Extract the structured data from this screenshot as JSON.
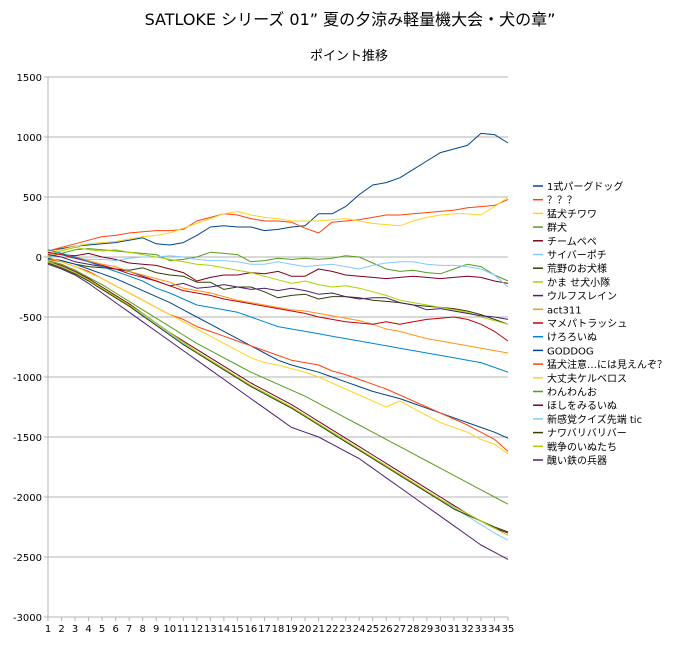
{
  "chart_data": {
    "type": "line",
    "title": "SATLOKE シリーズ 01” 夏の夕涼み軽量機大会・犬の章”",
    "subtitle": "ポイント推移",
    "xlabel": "",
    "ylabel": "",
    "x": [
      1,
      2,
      3,
      4,
      5,
      6,
      7,
      8,
      9,
      10,
      11,
      12,
      13,
      14,
      15,
      16,
      17,
      18,
      19,
      20,
      21,
      22,
      23,
      24,
      25,
      26,
      27,
      28,
      29,
      30,
      31,
      32,
      33,
      34,
      35
    ],
    "ylim": [
      -3000,
      1500
    ],
    "yticks": [
      1500,
      1000,
      500,
      0,
      -500,
      -1000,
      -1500,
      -2000,
      -2500,
      -3000
    ],
    "grid": true,
    "legend_position": "right",
    "series": [
      {
        "name": "1式パーグドッグ",
        "color": "#004586",
        "values": [
          50,
          70,
          90,
          100,
          110,
          120,
          140,
          160,
          110,
          100,
          120,
          180,
          250,
          260,
          250,
          250,
          220,
          230,
          250,
          260,
          360,
          360,
          420,
          520,
          600,
          620,
          660,
          730,
          800,
          870,
          900,
          930,
          1030,
          1020,
          950
        ]
      },
      {
        "name": "？？？",
        "color": "#ff420e",
        "values": [
          50,
          80,
          110,
          140,
          170,
          180,
          200,
          210,
          220,
          220,
          230,
          300,
          330,
          360,
          350,
          320,
          300,
          300,
          290,
          240,
          200,
          290,
          300,
          310,
          330,
          350,
          350,
          360,
          370,
          380,
          390,
          410,
          420,
          430,
          480
        ]
      },
      {
        "name": "猛犬チワワ",
        "color": "#ffd320",
        "values": [
          50,
          60,
          90,
          110,
          120,
          130,
          150,
          170,
          180,
          200,
          240,
          280,
          320,
          360,
          380,
          350,
          330,
          320,
          300,
          300,
          300,
          310,
          320,
          300,
          280,
          270,
          260,
          300,
          330,
          350,
          360,
          360,
          350,
          420,
          500
        ]
      },
      {
        "name": "群犬",
        "color": "#579d1c",
        "values": [
          0,
          30,
          60,
          70,
          60,
          50,
          40,
          30,
          20,
          -30,
          -20,
          0,
          40,
          30,
          20,
          -40,
          -30,
          -10,
          -20,
          -10,
          -20,
          -10,
          10,
          0,
          -50,
          -100,
          -120,
          -110,
          -130,
          -140,
          -100,
          -60,
          -80,
          -150,
          -200
        ]
      },
      {
        "name": "チームペペ",
        "color": "#7e0021",
        "values": [
          30,
          20,
          10,
          30,
          0,
          -20,
          -50,
          -60,
          -70,
          -100,
          -130,
          -200,
          -170,
          -150,
          -150,
          -130,
          -140,
          -120,
          -160,
          -160,
          -100,
          -120,
          -150,
          -160,
          -170,
          -180,
          -170,
          -160,
          -170,
          -180,
          -170,
          -160,
          -170,
          -200,
          -220
        ]
      },
      {
        "name": "サイバーポチ",
        "color": "#83caff",
        "values": [
          10,
          0,
          -10,
          -20,
          -20,
          -30,
          -10,
          0,
          0,
          10,
          0,
          -20,
          -30,
          -30,
          -40,
          -60,
          -60,
          -40,
          -60,
          -80,
          -70,
          -60,
          -80,
          -100,
          -70,
          -50,
          -40,
          -40,
          -60,
          -70,
          -70,
          -80,
          -100,
          -150,
          -250
        ]
      },
      {
        "name": "荒野のお犬様",
        "color": "#314004",
        "values": [
          -10,
          -30,
          -60,
          -80,
          -90,
          -100,
          -110,
          -90,
          -130,
          -150,
          -160,
          -210,
          -210,
          -270,
          -250,
          -250,
          -290,
          -340,
          -320,
          -310,
          -350,
          -330,
          -330,
          -340,
          -360,
          -370,
          -380,
          -400,
          -410,
          -420,
          -430,
          -450,
          -480,
          -520,
          -560
        ]
      },
      {
        "name": "かま せ犬小隊",
        "color": "#aecf00",
        "values": [
          20,
          50,
          80,
          60,
          50,
          60,
          40,
          20,
          0,
          -20,
          -40,
          -60,
          -70,
          -90,
          -110,
          -130,
          -160,
          -190,
          -220,
          -200,
          -230,
          -250,
          -240,
          -260,
          -290,
          -320,
          -360,
          -380,
          -400,
          -420,
          -440,
          -460,
          -500,
          -530,
          -560
        ]
      },
      {
        "name": "ウルフスレイン",
        "color": "#4b1f6f",
        "values": [
          20,
          0,
          -40,
          -60,
          -80,
          -100,
          -120,
          -160,
          -200,
          -240,
          -220,
          -260,
          -250,
          -230,
          -250,
          -270,
          -260,
          -280,
          -260,
          -280,
          -310,
          -300,
          -330,
          -350,
          -340,
          -340,
          -380,
          -400,
          -440,
          -430,
          -450,
          -470,
          -490,
          -500,
          -520
        ]
      },
      {
        "name": "act311",
        "color": "#ff950e",
        "values": [
          30,
          20,
          0,
          -30,
          -60,
          -80,
          -120,
          -150,
          -180,
          -210,
          -260,
          -280,
          -300,
          -330,
          -360,
          -380,
          -400,
          -420,
          -440,
          -450,
          -470,
          -490,
          -510,
          -530,
          -560,
          -600,
          -620,
          -650,
          -680,
          -700,
          -720,
          -740,
          -760,
          -780,
          -800
        ]
      },
      {
        "name": "マメパトラッシュ",
        "color": "#c5000b",
        "values": [
          40,
          20,
          -10,
          -40,
          -70,
          -100,
          -140,
          -170,
          -200,
          -240,
          -280,
          -300,
          -320,
          -350,
          -370,
          -390,
          -410,
          -430,
          -450,
          -470,
          -500,
          -520,
          -540,
          -550,
          -560,
          -540,
          -560,
          -540,
          -520,
          -510,
          -500,
          -520,
          -560,
          -620,
          -700
        ]
      },
      {
        "name": "けろろいぬ",
        "color": "#0084d1",
        "values": [
          60,
          30,
          0,
          -40,
          -80,
          -120,
          -160,
          -200,
          -260,
          -300,
          -350,
          -400,
          -420,
          -440,
          -460,
          -500,
          -540,
          -580,
          -600,
          -620,
          -640,
          -660,
          -680,
          -700,
          -720,
          -740,
          -760,
          -780,
          -800,
          -820,
          -840,
          -860,
          -880,
          -920,
          -960
        ]
      },
      {
        "name": "GODDOG",
        "color": "#004586",
        "values": [
          -10,
          -30,
          -60,
          -100,
          -140,
          -180,
          -230,
          -280,
          -330,
          -380,
          -440,
          -500,
          -560,
          -620,
          -680,
          -740,
          -800,
          -860,
          -900,
          -930,
          -960,
          -1000,
          -1040,
          -1080,
          -1120,
          -1150,
          -1180,
          -1220,
          -1260,
          -1300,
          -1340,
          -1380,
          -1420,
          -1460,
          -1510
        ]
      },
      {
        "name": "猛犬注意…には見えんぞ？",
        "color": "#ff420e",
        "values": [
          -20,
          -40,
          -80,
          -120,
          -180,
          -240,
          -300,
          -360,
          -420,
          -480,
          -520,
          -580,
          -620,
          -660,
          -700,
          -740,
          -780,
          -820,
          -860,
          -880,
          -900,
          -950,
          -980,
          -1020,
          -1060,
          -1100,
          -1150,
          -1200,
          -1250,
          -1300,
          -1350,
          -1400,
          -1460,
          -1520,
          -1620
        ]
      },
      {
        "name": "大丈夫ケルベロス",
        "color": "#ffd320",
        "values": [
          0,
          -40,
          -80,
          -130,
          -180,
          -240,
          -300,
          -360,
          -420,
          -480,
          -540,
          -600,
          -660,
          -720,
          -780,
          -840,
          -880,
          -900,
          -930,
          -960,
          -1000,
          -1050,
          -1100,
          -1150,
          -1200,
          -1250,
          -1200,
          -1260,
          -1320,
          -1380,
          -1420,
          -1460,
          -1520,
          -1560,
          -1640
        ]
      },
      {
        "name": "わんわんお",
        "color": "#579d1c",
        "values": [
          -30,
          -60,
          -110,
          -170,
          -230,
          -300,
          -370,
          -440,
          -510,
          -580,
          -650,
          -720,
          -780,
          -840,
          -900,
          -960,
          -1010,
          -1060,
          -1110,
          -1160,
          -1220,
          -1280,
          -1340,
          -1400,
          -1460,
          -1520,
          -1580,
          -1640,
          -1700,
          -1760,
          -1820,
          -1880,
          -1940,
          -2000,
          -2060
        ]
      },
      {
        "name": "ほしをみるいぬ",
        "color": "#7e0021",
        "values": [
          -40,
          -70,
          -120,
          -180,
          -250,
          -320,
          -390,
          -470,
          -550,
          -630,
          -700,
          -770,
          -840,
          -910,
          -980,
          -1050,
          -1110,
          -1170,
          -1230,
          -1300,
          -1370,
          -1440,
          -1510,
          -1580,
          -1650,
          -1720,
          -1790,
          -1860,
          -1930,
          -2000,
          -2070,
          -2140,
          -2200,
          -2260,
          -2300
        ]
      },
      {
        "name": "新感覚クイズ先端 tic",
        "color": "#83caff",
        "values": [
          -40,
          -80,
          -130,
          -190,
          -260,
          -330,
          -400,
          -480,
          -560,
          -640,
          -720,
          -790,
          -860,
          -930,
          -1000,
          -1070,
          -1130,
          -1190,
          -1250,
          -1320,
          -1390,
          -1460,
          -1530,
          -1600,
          -1670,
          -1740,
          -1810,
          -1880,
          -1950,
          -2020,
          -2090,
          -2160,
          -2230,
          -2300,
          -2360
        ]
      },
      {
        "name": "ナワバリバリバー",
        "color": "#314004",
        "values": [
          -50,
          -90,
          -140,
          -200,
          -270,
          -340,
          -410,
          -490,
          -570,
          -650,
          -730,
          -800,
          -870,
          -940,
          -1010,
          -1080,
          -1140,
          -1200,
          -1260,
          -1330,
          -1400,
          -1470,
          -1540,
          -1610,
          -1680,
          -1750,
          -1820,
          -1890,
          -1960,
          -2030,
          -2100,
          -2150,
          -2200,
          -2250,
          -2290
        ]
      },
      {
        "name": "戦争のいぬたち",
        "color": "#aecf00",
        "values": [
          -40,
          -80,
          -130,
          -190,
          -260,
          -330,
          -400,
          -470,
          -550,
          -630,
          -710,
          -790,
          -860,
          -930,
          -1000,
          -1070,
          -1130,
          -1190,
          -1250,
          -1320,
          -1390,
          -1460,
          -1530,
          -1600,
          -1670,
          -1740,
          -1810,
          -1880,
          -1950,
          -2020,
          -2080,
          -2140,
          -2200,
          -2260,
          -2320
        ]
      },
      {
        "name": "醜い鉄の兵器",
        "color": "#4b1f6f",
        "values": [
          -60,
          -100,
          -150,
          -220,
          -300,
          -380,
          -460,
          -540,
          -620,
          -700,
          -780,
          -860,
          -940,
          -1020,
          -1100,
          -1180,
          -1260,
          -1340,
          -1420,
          -1460,
          -1500,
          -1560,
          -1620,
          -1680,
          -1760,
          -1840,
          -1920,
          -2000,
          -2080,
          -2160,
          -2240,
          -2320,
          -2400,
          -2460,
          -2520
        ]
      }
    ]
  }
}
